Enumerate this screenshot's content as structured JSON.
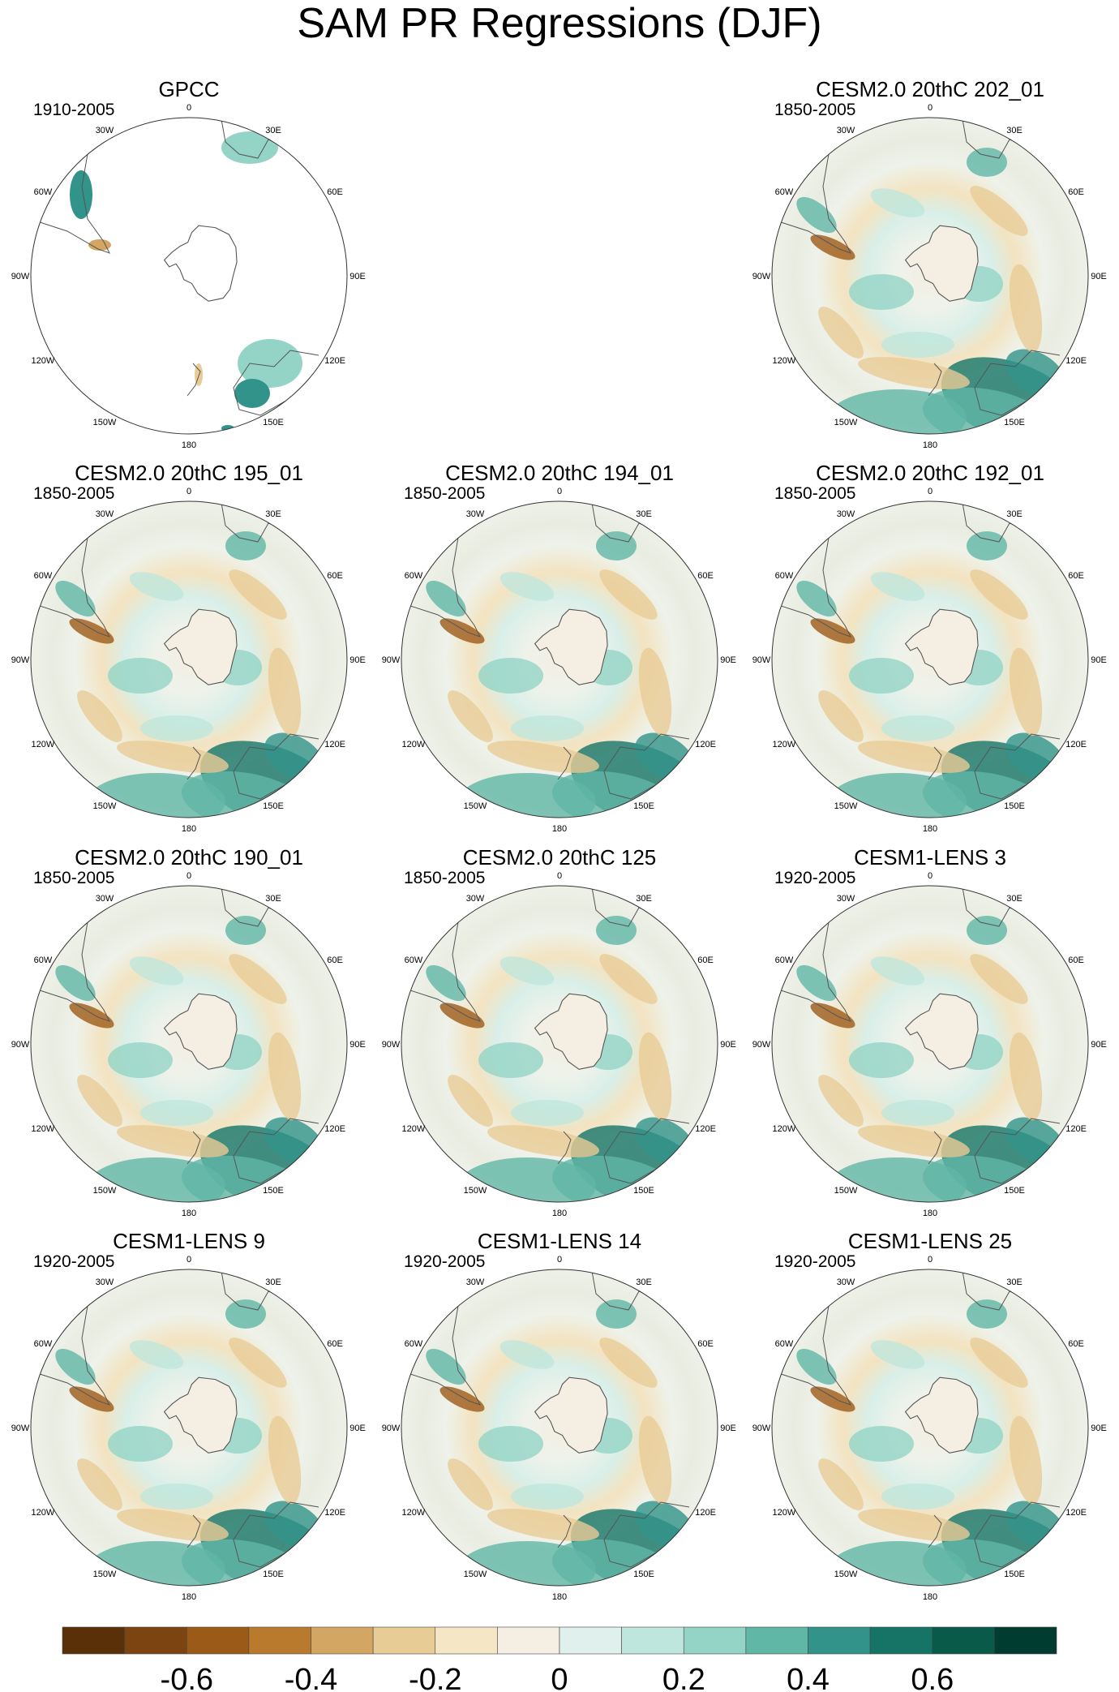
{
  "chart_data": {
    "type": "map",
    "title": "SAM PR Regressions (DJF)",
    "projection": "polar stereographic, Southern Hemisphere",
    "longitude_labels": [
      "0",
      "30E",
      "60E",
      "90E",
      "120E",
      "150E",
      "180",
      "150W",
      "120W",
      "90W",
      "60W",
      "30W"
    ],
    "colorbar": {
      "labels": [
        "-0.6",
        "-0.4",
        "-0.2",
        "0",
        "0.2",
        "0.4",
        "0.6"
      ],
      "colors": [
        "#5a3008",
        "#7c4410",
        "#9c5a18",
        "#b97a2e",
        "#d3a663",
        "#e8cc96",
        "#f5e7c6",
        "#f4efe2",
        "#e0f0ed",
        "#bfe6dc",
        "#93d4c6",
        "#60b7a6",
        "#31938a",
        "#157466",
        "#0a5a4a",
        "#013c30"
      ]
    },
    "panels": [
      {
        "title": "GPCC",
        "years": "1910-2005",
        "kind": "obs"
      },
      {
        "title": "CESM2.0 20thC 202_01",
        "years": "1850-2005",
        "kind": "model"
      },
      {
        "title": "CESM2.0 20thC 195_01",
        "years": "1850-2005",
        "kind": "model"
      },
      {
        "title": "CESM2.0 20thC 194_01",
        "years": "1850-2005",
        "kind": "model"
      },
      {
        "title": "CESM2.0 20thC 192_01",
        "years": "1850-2005",
        "kind": "model"
      },
      {
        "title": "CESM2.0 20thC 190_01",
        "years": "1850-2005",
        "kind": "model"
      },
      {
        "title": "CESM2.0 20thC 125",
        "years": "1850-2005",
        "kind": "model"
      },
      {
        "title": "CESM1-LENS 3",
        "years": "1920-2005",
        "kind": "model"
      },
      {
        "title": "CESM1-LENS 9",
        "years": "1920-2005",
        "kind": "model"
      },
      {
        "title": "CESM1-LENS 14",
        "years": "1920-2005",
        "kind": "model"
      },
      {
        "title": "CESM1-LENS 25",
        "years": "1920-2005",
        "kind": "model"
      }
    ]
  }
}
